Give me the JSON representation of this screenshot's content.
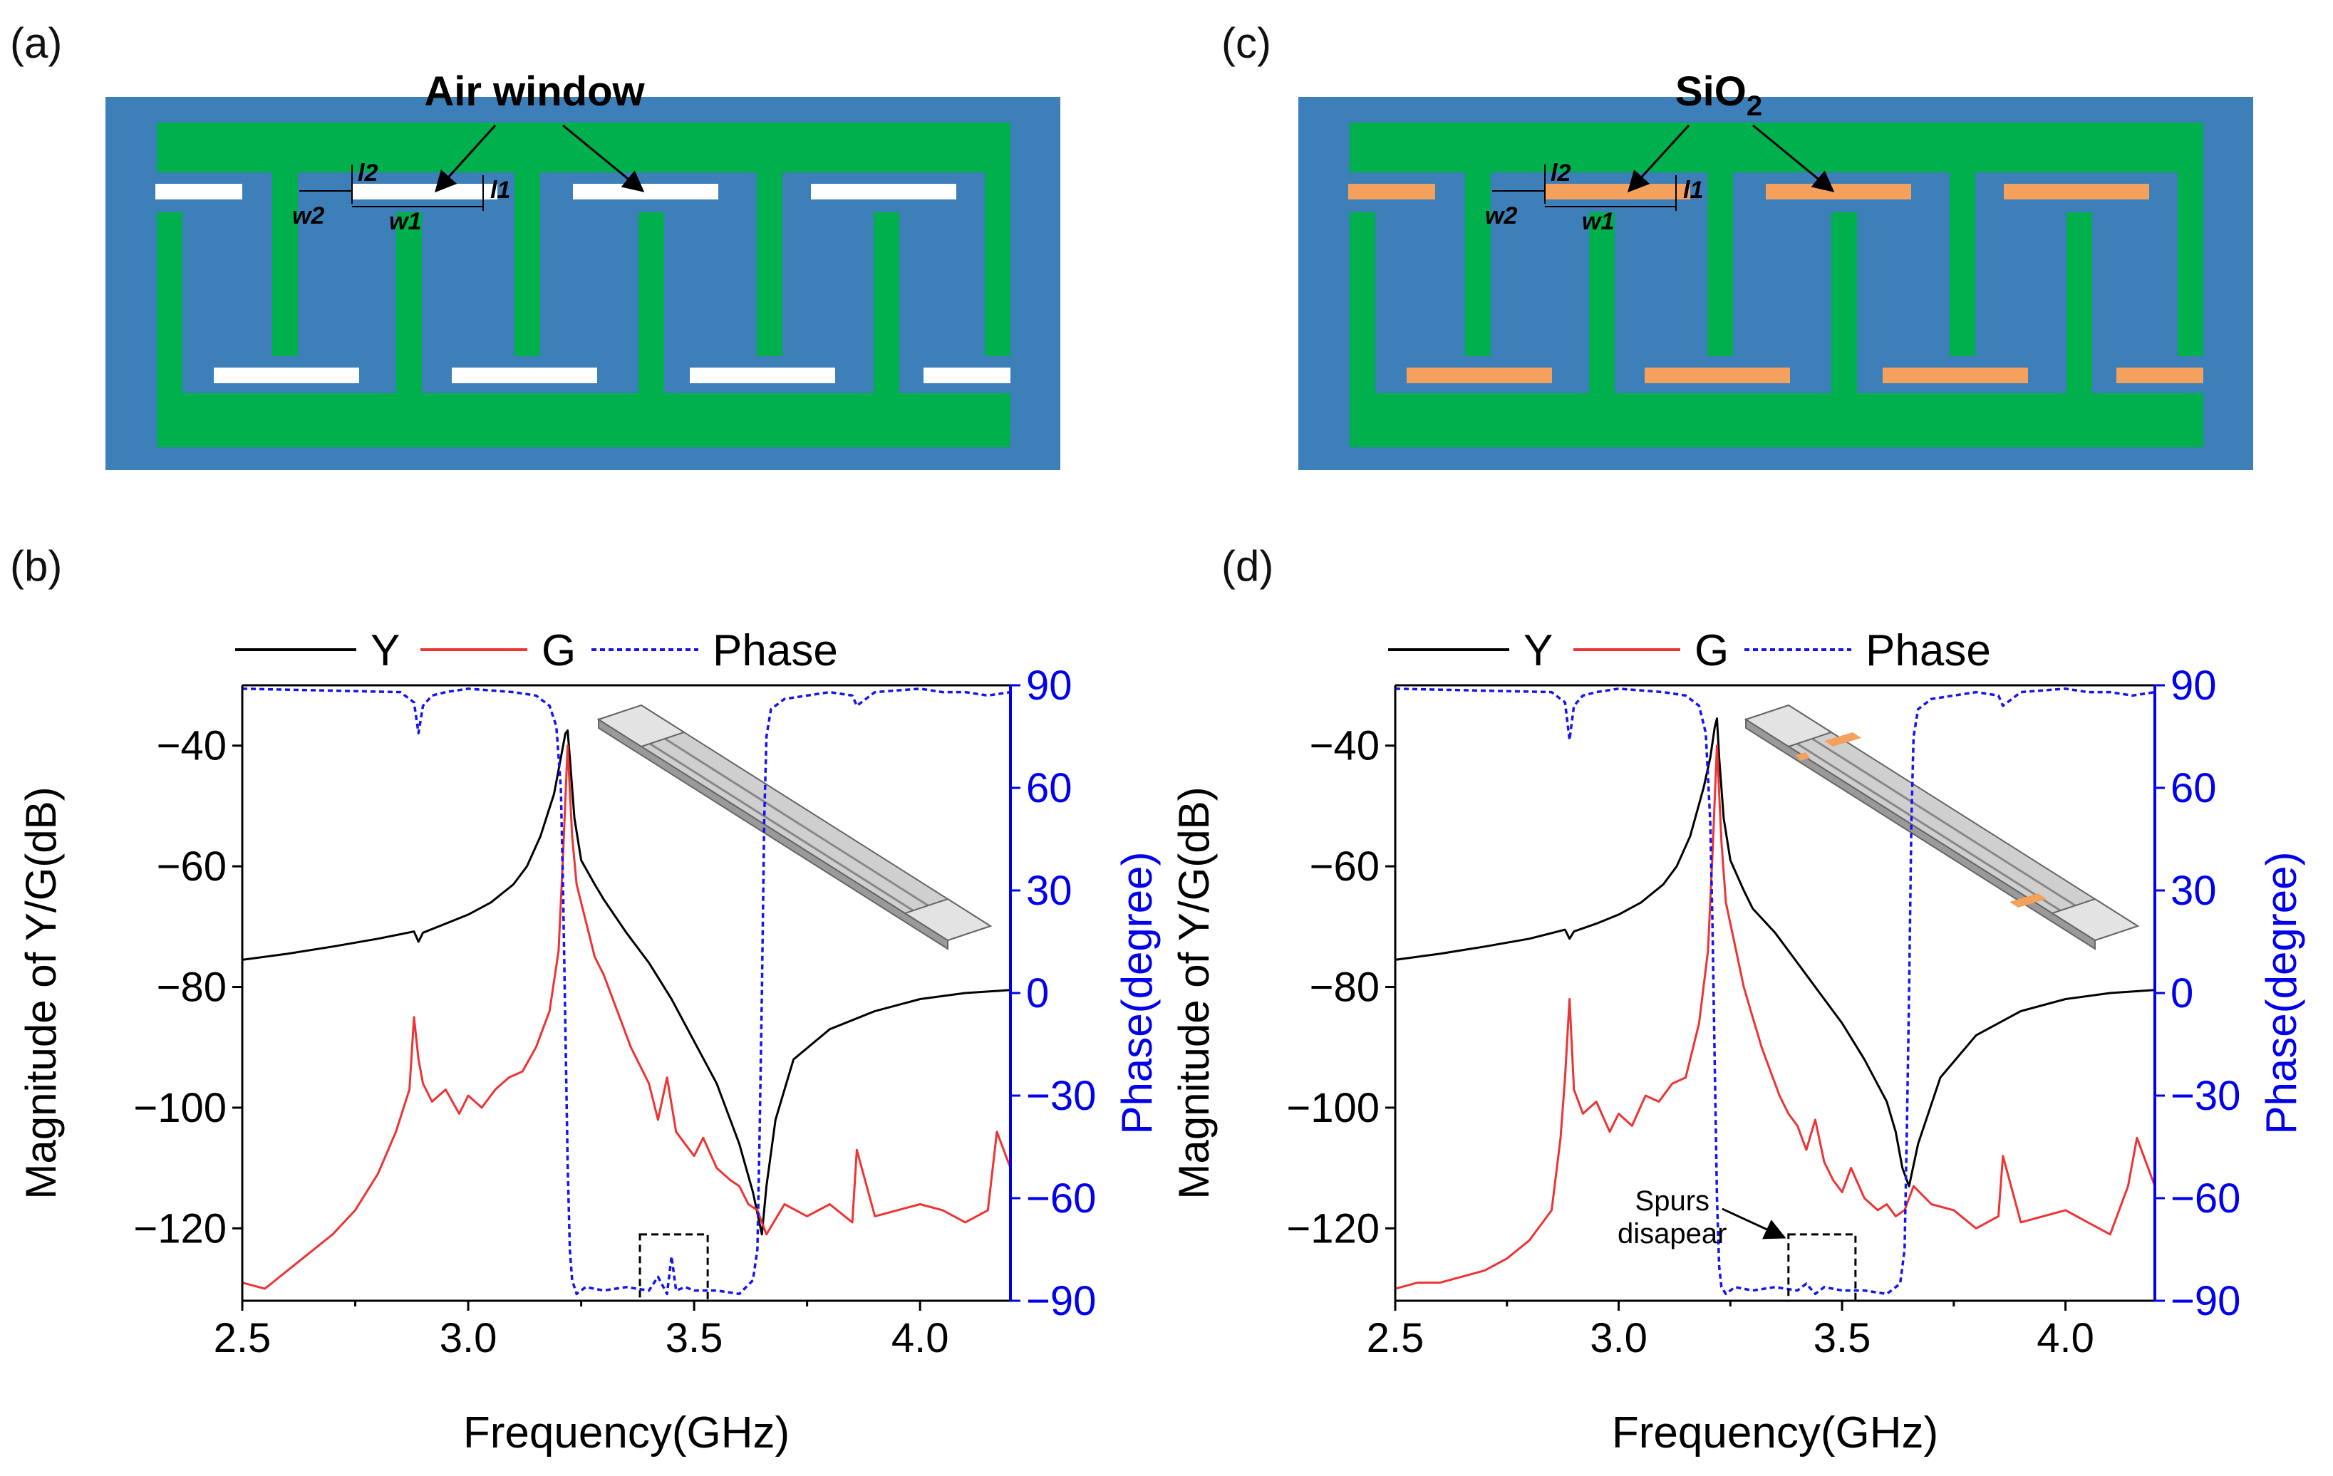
{
  "figure_labels": {
    "a": "(a)",
    "b": "(b)",
    "c": "(c)",
    "d": "(d)"
  },
  "diagrams": {
    "a": {
      "callout": "Air window",
      "window_material": "air",
      "dims": [
        "l2",
        "l1",
        "w2",
        "w1"
      ]
    },
    "c": {
      "callout": "SiO",
      "callout_sub": "2",
      "window_material": "SiO2",
      "dims": [
        "l2",
        "l1",
        "w2",
        "w1"
      ]
    }
  },
  "colors": {
    "substrate": "#3d7fb8",
    "electrode": "#00b04c",
    "air_window": "#ffffff",
    "sio2": "#f4a15d",
    "Y": "#000000",
    "G": "#ee3333",
    "Phase": "#1515ee",
    "phase_axis": "#0000ee"
  },
  "chart_data": [
    {
      "panel": "b",
      "type": "line",
      "xlabel": "Frequency(GHz)",
      "ylabel": "Magnitude of Y/G(dB)",
      "y2label": "Phase(degree)",
      "xlim": [
        2.5,
        4.2
      ],
      "ylim": [
        -132,
        -30
      ],
      "y2lim": [
        -90,
        90
      ],
      "xticks": [
        2.5,
        3.0,
        3.5,
        4.0
      ],
      "xtick_labels": [
        "2.5",
        "3.0",
        "3.5",
        "4.0"
      ],
      "yticks": [
        -40,
        -60,
        -80,
        -100,
        -120
      ],
      "ytick_labels": [
        "−40",
        "−60",
        "−80",
        "−100",
        "−120"
      ],
      "y2ticks": [
        90,
        60,
        30,
        0,
        -30,
        -60,
        -90
      ],
      "y2tick_labels": [
        "90",
        "60",
        "30",
        "0",
        "−30",
        "−60",
        "−90"
      ],
      "legend": [
        "Y",
        "G",
        "Phase"
      ],
      "grid": false,
      "highlight_box": {
        "x": [
          3.38,
          3.53
        ],
        "y": [
          -121,
          -132
        ]
      },
      "annotation": null,
      "series": [
        {
          "name": "Y",
          "axis": "left",
          "style": "solid",
          "x": [
            2.5,
            2.6,
            2.7,
            2.8,
            2.88,
            2.89,
            2.9,
            2.95,
            3.0,
            3.05,
            3.1,
            3.13,
            3.16,
            3.19,
            3.205,
            3.215,
            3.22,
            3.225,
            3.235,
            3.25,
            3.28,
            3.3,
            3.35,
            3.4,
            3.45,
            3.5,
            3.55,
            3.6,
            3.63,
            3.65,
            3.66,
            3.68,
            3.72,
            3.8,
            3.9,
            4.0,
            4.1,
            4.2
          ],
          "y": [
            -75.5,
            -74.5,
            -73.3,
            -72,
            -70.8,
            -72.5,
            -71,
            -69.5,
            -68,
            -66,
            -63,
            -60,
            -55,
            -48,
            -42,
            -38,
            -37.5,
            -42,
            -52,
            -59,
            -63,
            -65.5,
            -71,
            -76,
            -82,
            -89,
            -96,
            -106,
            -114,
            -121,
            -113,
            -102,
            -92,
            -87,
            -84,
            -82,
            -81,
            -80.5
          ]
        },
        {
          "name": "G",
          "axis": "left",
          "style": "solid",
          "x": [
            2.5,
            2.55,
            2.6,
            2.65,
            2.7,
            2.75,
            2.8,
            2.84,
            2.87,
            2.88,
            2.89,
            2.9,
            2.92,
            2.95,
            2.98,
            3.0,
            3.03,
            3.06,
            3.09,
            3.12,
            3.15,
            3.18,
            3.2,
            3.21,
            3.22,
            3.23,
            3.24,
            3.26,
            3.28,
            3.3,
            3.32,
            3.34,
            3.36,
            3.38,
            3.4,
            3.42,
            3.44,
            3.46,
            3.48,
            3.5,
            3.52,
            3.55,
            3.58,
            3.6,
            3.62,
            3.64,
            3.66,
            3.7,
            3.75,
            3.8,
            3.85,
            3.86,
            3.9,
            3.95,
            4.0,
            4.05,
            4.1,
            4.15,
            4.17,
            4.2
          ],
          "y": [
            -129,
            -130,
            -127,
            -124,
            -121,
            -117,
            -111,
            -104,
            -97,
            -85,
            -92,
            -96,
            -99,
            -97,
            -101,
            -98,
            -100,
            -97,
            -95,
            -94,
            -90,
            -84,
            -74,
            -58,
            -40,
            -55,
            -63,
            -69,
            -75,
            -78,
            -82,
            -86,
            -90,
            -93,
            -96,
            -102,
            -95,
            -104,
            -106,
            -108,
            -105,
            -110,
            -112,
            -113,
            -116,
            -117,
            -121,
            -116,
            -118,
            -116,
            -119,
            -107,
            -118,
            -117,
            -116,
            -117,
            -119,
            -117,
            -104,
            -110
          ]
        },
        {
          "name": "Phase",
          "axis": "right",
          "style": "dotted",
          "x": [
            2.5,
            2.85,
            2.88,
            2.89,
            2.9,
            2.92,
            2.95,
            3.0,
            3.1,
            3.15,
            3.18,
            3.195,
            3.205,
            3.21,
            3.215,
            3.22,
            3.225,
            3.23,
            3.24,
            3.26,
            3.3,
            3.35,
            3.4,
            3.42,
            3.44,
            3.45,
            3.46,
            3.48,
            3.5,
            3.52,
            3.55,
            3.6,
            3.63,
            3.64,
            3.645,
            3.65,
            3.655,
            3.66,
            3.67,
            3.7,
            3.75,
            3.8,
            3.85,
            3.86,
            3.9,
            4.0,
            4.05,
            4.1,
            4.15,
            4.2
          ],
          "y": [
            89,
            88,
            85,
            76,
            84,
            87,
            88,
            89,
            88,
            87,
            84,
            78,
            60,
            30,
            -10,
            -50,
            -75,
            -84,
            -88,
            -86,
            -87,
            -86,
            -87,
            -83,
            -88,
            -77,
            -87,
            -86,
            -87,
            -87,
            -87,
            -88,
            -84,
            -75,
            -40,
            0,
            50,
            75,
            83,
            86,
            87,
            88,
            87,
            84,
            88,
            89,
            88,
            88,
            87,
            88
          ]
        }
      ]
    },
    {
      "panel": "d",
      "type": "line",
      "xlabel": "Frequency(GHz)",
      "ylabel": "Magnitude of Y/G(dB)",
      "y2label": "Phase(degree)",
      "xlim": [
        2.5,
        4.2
      ],
      "ylim": [
        -132,
        -30
      ],
      "y2lim": [
        -90,
        90
      ],
      "xticks": [
        2.5,
        3.0,
        3.5,
        4.0
      ],
      "xtick_labels": [
        "2.5",
        "3.0",
        "3.5",
        "4.0"
      ],
      "yticks": [
        -40,
        -60,
        -80,
        -100,
        -120
      ],
      "ytick_labels": [
        "−40",
        "−60",
        "−80",
        "−100",
        "−120"
      ],
      "y2ticks": [
        90,
        60,
        30,
        0,
        -30,
        -60,
        -90
      ],
      "y2tick_labels": [
        "90",
        "60",
        "30",
        "0",
        "−30",
        "−60",
        "−90"
      ],
      "legend": [
        "Y",
        "G",
        "Phase"
      ],
      "grid": false,
      "highlight_box": {
        "x": [
          3.38,
          3.53
        ],
        "y": [
          -121,
          -132
        ]
      },
      "annotation": {
        "lines": [
          "Spurs",
          "disapear"
        ],
        "text_at": [
          3.12,
          -117
        ],
        "arrow_to": [
          3.38,
          -121.5
        ]
      },
      "series": [
        {
          "name": "Y",
          "axis": "left",
          "style": "solid",
          "x": [
            2.5,
            2.6,
            2.7,
            2.8,
            2.88,
            2.89,
            2.9,
            2.95,
            3.0,
            3.05,
            3.1,
            3.13,
            3.16,
            3.19,
            3.205,
            3.215,
            3.22,
            3.225,
            3.235,
            3.25,
            3.28,
            3.3,
            3.35,
            3.4,
            3.45,
            3.5,
            3.55,
            3.6,
            3.62,
            3.635,
            3.65,
            3.67,
            3.72,
            3.8,
            3.9,
            4.0,
            4.1,
            4.2
          ],
          "y": [
            -75.5,
            -74.5,
            -73.3,
            -72,
            -70.5,
            -72,
            -70.8,
            -69.5,
            -68,
            -66,
            -63,
            -60,
            -55,
            -47,
            -42,
            -37,
            -35.5,
            -42,
            -52,
            -59,
            -64,
            -67,
            -71,
            -76,
            -81,
            -86,
            -92,
            -99,
            -104,
            -110,
            -113,
            -106,
            -95,
            -88,
            -84,
            -82,
            -81,
            -80.5
          ]
        },
        {
          "name": "G",
          "axis": "left",
          "style": "solid",
          "x": [
            2.5,
            2.55,
            2.6,
            2.65,
            2.7,
            2.75,
            2.8,
            2.85,
            2.87,
            2.88,
            2.89,
            2.9,
            2.92,
            2.95,
            2.98,
            3.0,
            3.03,
            3.06,
            3.09,
            3.12,
            3.15,
            3.18,
            3.2,
            3.21,
            3.22,
            3.23,
            3.24,
            3.26,
            3.28,
            3.3,
            3.32,
            3.34,
            3.36,
            3.38,
            3.4,
            3.42,
            3.44,
            3.46,
            3.48,
            3.5,
            3.52,
            3.55,
            3.58,
            3.6,
            3.62,
            3.64,
            3.66,
            3.7,
            3.75,
            3.8,
            3.85,
            3.86,
            3.9,
            3.95,
            4.0,
            4.05,
            4.1,
            4.14,
            4.16,
            4.2
          ],
          "y": [
            -130,
            -129,
            -129,
            -128,
            -127,
            -125,
            -122,
            -117,
            -105,
            -95,
            -82,
            -97,
            -101,
            -99,
            -104,
            -101,
            -103,
            -98,
            -99,
            -96,
            -95,
            -86,
            -74,
            -58,
            -40,
            -56,
            -66,
            -73,
            -80,
            -85,
            -90,
            -94,
            -98,
            -101,
            -103,
            -107,
            -102,
            -109,
            -112,
            -114,
            -110,
            -115,
            -117,
            -116,
            -118,
            -117,
            -113,
            -116,
            -117,
            -120,
            -118,
            -108,
            -119,
            -118,
            -117,
            -119,
            -121,
            -113,
            -105,
            -113
          ]
        },
        {
          "name": "Phase",
          "axis": "right",
          "style": "dotted",
          "x": [
            2.5,
            2.85,
            2.88,
            2.89,
            2.9,
            2.92,
            2.95,
            3.0,
            3.1,
            3.15,
            3.18,
            3.195,
            3.205,
            3.21,
            3.215,
            3.22,
            3.225,
            3.23,
            3.24,
            3.26,
            3.3,
            3.35,
            3.4,
            3.42,
            3.44,
            3.46,
            3.5,
            3.55,
            3.6,
            3.63,
            3.64,
            3.645,
            3.65,
            3.655,
            3.66,
            3.67,
            3.7,
            3.75,
            3.8,
            3.85,
            3.86,
            3.9,
            4.0,
            4.05,
            4.1,
            4.15,
            4.2
          ],
          "y": [
            89,
            88,
            85,
            74,
            84,
            87,
            88,
            89,
            88,
            87,
            84,
            76,
            50,
            20,
            -20,
            -60,
            -80,
            -86,
            -88,
            -86,
            -87,
            -86,
            -87,
            -85,
            -88,
            -86,
            -87,
            -87,
            -88,
            -85,
            -75,
            -40,
            0,
            50,
            75,
            83,
            86,
            87,
            88,
            87,
            84,
            88,
            89,
            88,
            88,
            87,
            88
          ]
        }
      ]
    }
  ]
}
